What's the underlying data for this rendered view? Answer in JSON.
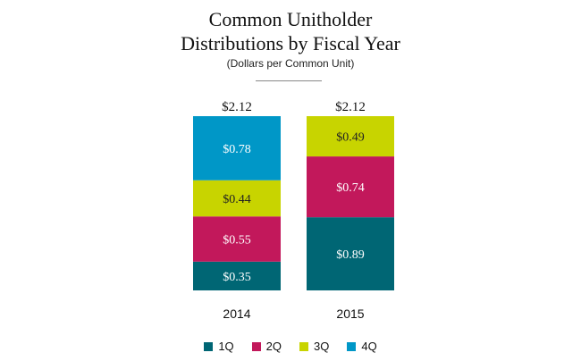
{
  "chart_data": {
    "type": "bar",
    "stacked": true,
    "title": "Common Unitholder Distributions by Fiscal Year",
    "title_lines": [
      "Common Unitholder",
      "Distributions by Fiscal Year"
    ],
    "subtitle": "(Dollars per Common Unit)",
    "categories": [
      "2014",
      "2015"
    ],
    "totals": [
      "$2.12",
      "$2.12"
    ],
    "series": [
      {
        "name": "1Q",
        "color": "#006674",
        "values": [
          0.35,
          0.89
        ],
        "labels": [
          "$0.35",
          "$0.89"
        ]
      },
      {
        "name": "2Q",
        "color": "#c2185b",
        "values": [
          0.55,
          0.74
        ],
        "labels": [
          "$0.55",
          "$0.74"
        ]
      },
      {
        "name": "3Q",
        "color": "#c8d400",
        "values": [
          0.44,
          0.49
        ],
        "labels": [
          "$0.44",
          "$0.49"
        ]
      },
      {
        "name": "4Q",
        "color": "#0097c7",
        "values": [
          0.78,
          null
        ],
        "labels": [
          "$0.78",
          ""
        ]
      }
    ],
    "ylim": [
      0,
      2.12
    ],
    "grid": false,
    "legend_position": "bottom"
  }
}
